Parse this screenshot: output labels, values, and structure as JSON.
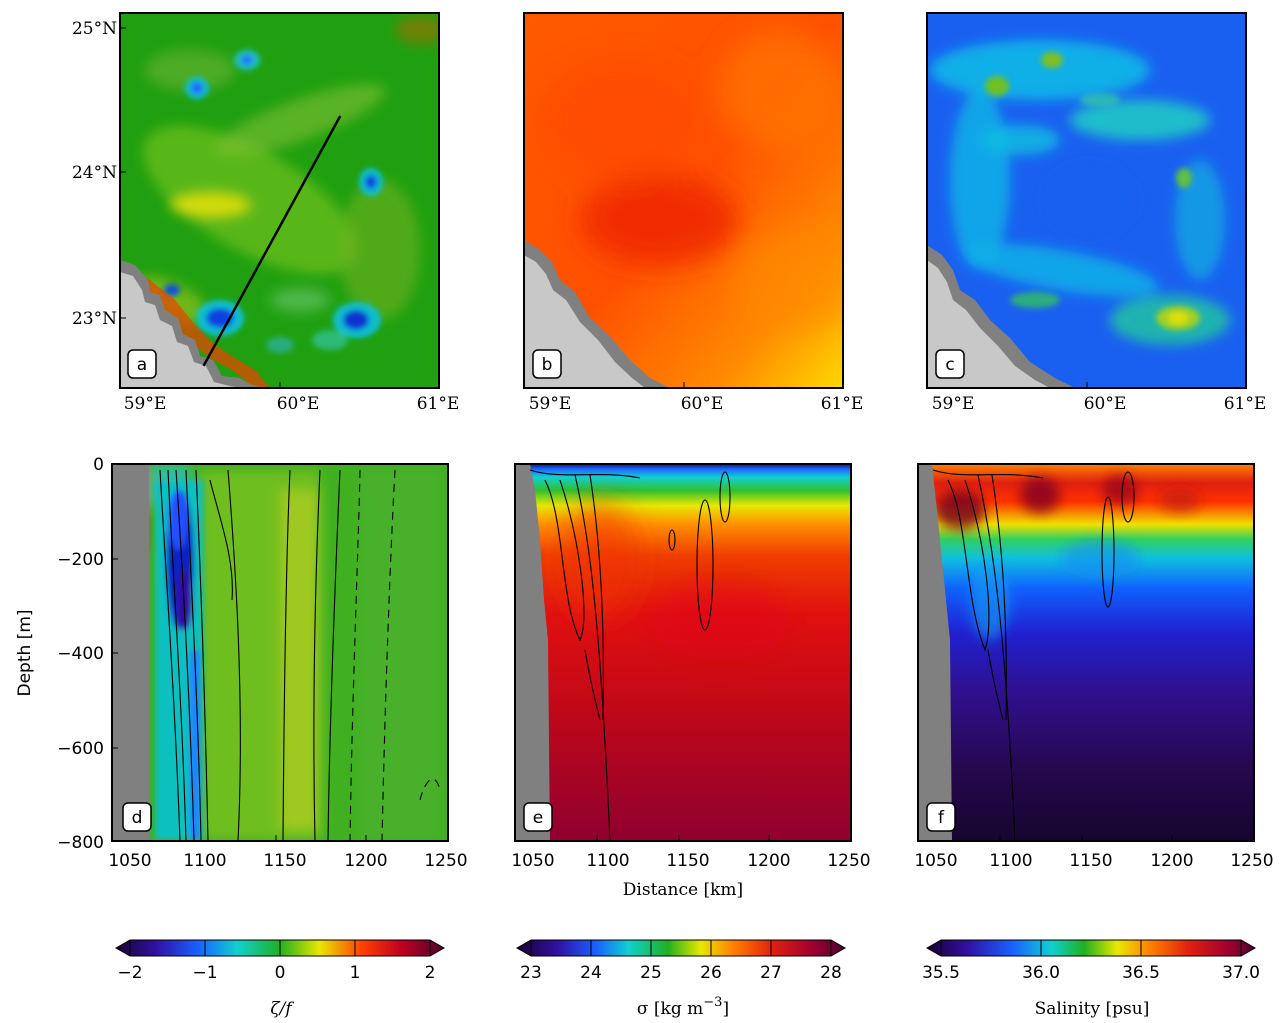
{
  "chart_data": [
    {
      "type": "heatmap",
      "panel": "a",
      "quantity": "zeta/f",
      "xticks": [
        "59°E",
        "60°E",
        "61°E"
      ],
      "yticks": [
        "25°N",
        "24°N",
        "23°N"
      ],
      "xlim": [
        58.9,
        61.0
      ],
      "ylim": [
        22.55,
        25.1
      ],
      "section_line": {
        "start": {
          "lon": 59.45,
          "lat": 22.7
        },
        "end": {
          "lon": 60.35,
          "lat": 24.4
        }
      },
      "eddies": [
        {
          "lon": 59.5,
          "lat": 23.0,
          "value": -1.4
        },
        {
          "lon": 60.35,
          "lat": 23.0,
          "value": -1.5
        },
        {
          "lon": 60.45,
          "lat": 23.95,
          "value": -1.4
        },
        {
          "lon": 59.5,
          "lat": 24.6,
          "value": -0.8
        },
        {
          "lon": 59.8,
          "lat": 24.85,
          "value": -0.8
        }
      ]
    },
    {
      "type": "heatmap",
      "panel": "b",
      "quantity": "sigma",
      "xticks": [
        "59°E",
        "60°E",
        "61°E"
      ],
      "xlim": [
        58.9,
        61.0
      ],
      "ylim": [
        22.55,
        25.1
      ],
      "field_range": [
        26.3,
        27.0
      ],
      "min_region": {
        "lon": 59.9,
        "lat": 23.65,
        "value": 26.3
      }
    },
    {
      "type": "heatmap",
      "panel": "c",
      "quantity": "salinity",
      "xticks": [
        "59°E",
        "60°E",
        "61°E"
      ],
      "xlim": [
        58.9,
        61.0
      ],
      "ylim": [
        22.55,
        25.1
      ],
      "field_range": [
        35.8,
        36.4
      ]
    },
    {
      "type": "heatmap",
      "panel": "d",
      "quantity": "zeta/f",
      "xticks": [
        "1050",
        "1100",
        "1150",
        "1200",
        "1250"
      ],
      "yticks": [
        "0",
        "−200",
        "−400",
        "−600",
        "−800"
      ],
      "xlim": [
        1045,
        1250
      ],
      "ylim": [
        -800,
        0
      ],
      "ylabel": "Depth [m]",
      "negative_band": {
        "x": [
          1075,
          1095
        ],
        "value": -1.2
      }
    },
    {
      "type": "heatmap",
      "panel": "e",
      "quantity": "sigma",
      "xticks": [
        "1050",
        "1100",
        "1150",
        "1200",
        "1250"
      ],
      "xlim": [
        1045,
        1250
      ],
      "ylim": [
        -800,
        0
      ],
      "xlabel": "Distance [km]",
      "profile": [
        {
          "depth": 0,
          "sigma": 23.5
        },
        {
          "depth": -50,
          "sigma": 25.5
        },
        {
          "depth": -150,
          "sigma": 26.5
        },
        {
          "depth": -300,
          "sigma": 27.0
        },
        {
          "depth": -800,
          "sigma": 27.8
        }
      ]
    },
    {
      "type": "heatmap",
      "panel": "f",
      "quantity": "salinity",
      "xticks": [
        "1050",
        "1100",
        "1150",
        "1200",
        "1250"
      ],
      "xlim": [
        1045,
        1250
      ],
      "ylim": [
        -800,
        0
      ],
      "profile": [
        {
          "depth": 0,
          "salinity": 36.6
        },
        {
          "depth": -100,
          "salinity": 36.8
        },
        {
          "depth": -250,
          "salinity": 36.0
        },
        {
          "depth": -800,
          "salinity": 35.5
        }
      ]
    }
  ],
  "colorbars": [
    {
      "name": "zeta-colorbar",
      "ticks": [
        "−2",
        "−1",
        "0",
        "1",
        "2"
      ],
      "range": [
        -2,
        2
      ],
      "label": "ζ/f"
    },
    {
      "name": "sigma-colorbar",
      "ticks": [
        "23",
        "24",
        "25",
        "26",
        "27",
        "28"
      ],
      "range": [
        23,
        28
      ],
      "label": "σ [kg m",
      "label_sup": "−3",
      "label_end": "]"
    },
    {
      "name": "salinity-colorbar",
      "ticks": [
        "35.5",
        "36.0",
        "36.5",
        "37.0"
      ],
      "range": [
        35.5,
        37.0
      ],
      "label": "Salinity [psu]"
    }
  ],
  "panel_labels": [
    "a",
    "b",
    "c",
    "d",
    "e",
    "f"
  ],
  "colors": {
    "land": "#c8c8c8",
    "shelf": "#808080",
    "section_line": "#000000"
  }
}
